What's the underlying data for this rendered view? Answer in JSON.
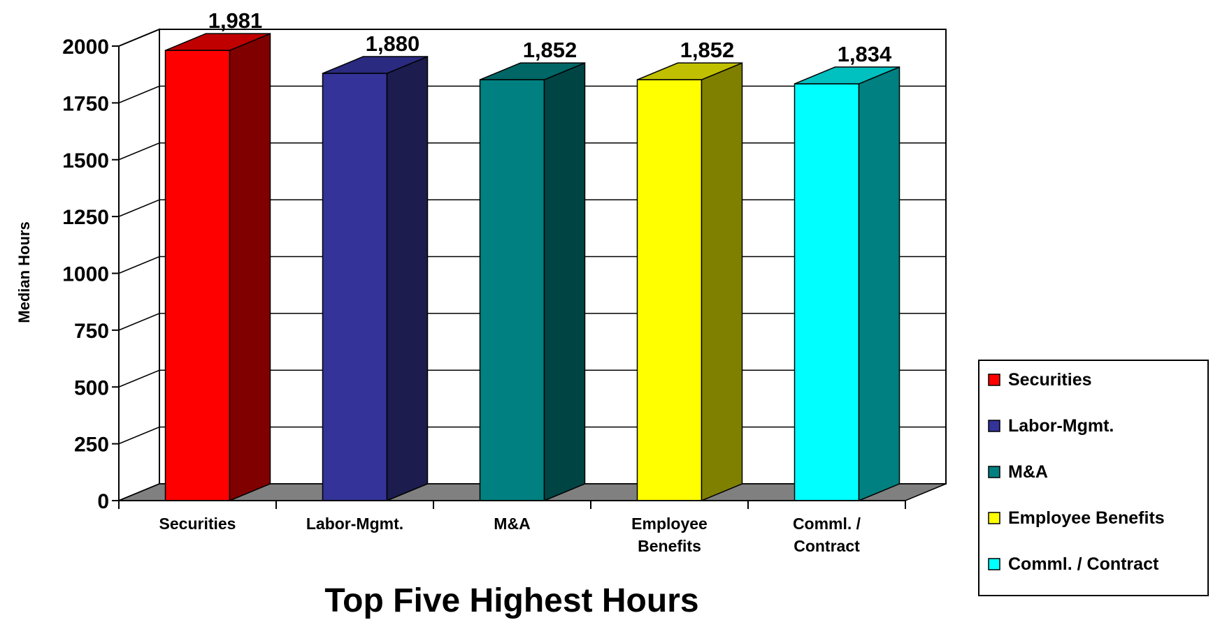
{
  "chart_data": {
    "type": "bar",
    "title": "Top Five Highest Hours",
    "xlabel": "",
    "ylabel": "Median Hours",
    "ylim": [
      0,
      2000
    ],
    "yticks": [
      0,
      250,
      500,
      750,
      1000,
      1250,
      1500,
      1750,
      2000
    ],
    "grid": true,
    "three_d": true,
    "legend_position": "right",
    "categories": [
      [
        "Securities"
      ],
      [
        "Labor-Mgmt."
      ],
      [
        "M&A"
      ],
      [
        "Employee",
        "Benefits"
      ],
      [
        "Comml. /",
        "Contract"
      ]
    ],
    "series": [
      {
        "name": "Securities",
        "value": 1981,
        "label": "1,981",
        "color": "#ff0000",
        "side": "#800000",
        "top": "#c00000"
      },
      {
        "name": "Labor-Mgmt.",
        "value": 1880,
        "label": "1,880",
        "color": "#333399",
        "side": "#1c1c4f",
        "top": "#2a2a80"
      },
      {
        "name": "M&A",
        "value": 1852,
        "label": "1,852",
        "color": "#008080",
        "side": "#004444",
        "top": "#006666"
      },
      {
        "name": "Employee Benefits",
        "value": 1852,
        "label": "1,852",
        "color": "#ffff00",
        "side": "#808000",
        "top": "#c0c000"
      },
      {
        "name": "Comml. / Contract",
        "value": 1834,
        "label": "1,834",
        "color": "#00ffff",
        "side": "#008080",
        "top": "#00c0c0"
      }
    ]
  }
}
